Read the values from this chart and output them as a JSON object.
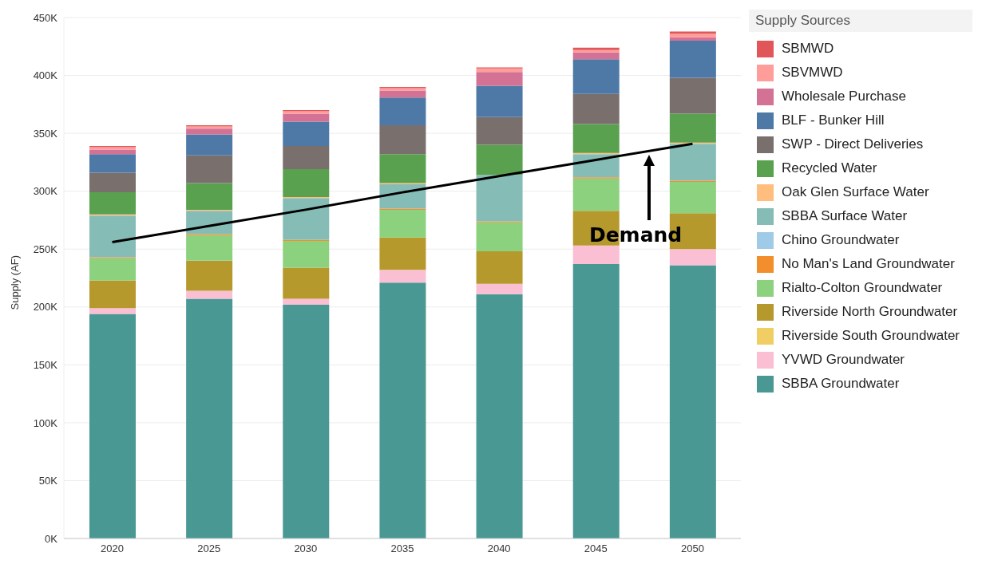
{
  "chart_data": {
    "type": "bar",
    "stacked": true,
    "ylabel": "Supply (AF)",
    "legend_title": "Supply Sources",
    "legend": "right",
    "grid": "y",
    "categories": [
      "2020",
      "2025",
      "2030",
      "2035",
      "2040",
      "2045",
      "2050"
    ],
    "ylim": [
      0,
      450
    ],
    "yticks": [
      {
        "value": 0,
        "label": "0K"
      },
      {
        "value": 50,
        "label": "50K"
      },
      {
        "value": 100,
        "label": "100K"
      },
      {
        "value": 150,
        "label": "150K"
      },
      {
        "value": 200,
        "label": "200K"
      },
      {
        "value": 250,
        "label": "250K"
      },
      {
        "value": 300,
        "label": "300K"
      },
      {
        "value": 350,
        "label": "350K"
      },
      {
        "value": 400,
        "label": "400K"
      },
      {
        "value": 450,
        "label": "450K"
      }
    ],
    "series": [
      {
        "name": "SBBA Groundwater",
        "color": "#499894",
        "values": [
          194,
          207,
          202,
          221,
          211,
          237,
          236
        ]
      },
      {
        "name": "YVWD Groundwater",
        "color": "#fabfd2",
        "values": [
          5,
          7,
          5,
          11,
          9,
          16,
          14
        ]
      },
      {
        "name": "Riverside South Groundwater",
        "color": "#f1ce63",
        "values": [
          0,
          0,
          0,
          0,
          0,
          0,
          0
        ]
      },
      {
        "name": "Riverside North Groundwater",
        "color": "#b6992d",
        "values": [
          24,
          26,
          27,
          28,
          28,
          30,
          31
        ]
      },
      {
        "name": "Rialto-Colton Groundwater",
        "color": "#8cd17d",
        "values": [
          19,
          22,
          23,
          24,
          25,
          28,
          27
        ]
      },
      {
        "name": "No Man's Land Groundwater",
        "color": "#f28e2b",
        "values": [
          1,
          1,
          1,
          1,
          1,
          1,
          1
        ]
      },
      {
        "name": "Chino Groundwater",
        "color": "#a0cbe8",
        "values": [
          0,
          0,
          0,
          0,
          0,
          0,
          0
        ]
      },
      {
        "name": "SBBA Surface Water",
        "color": "#86bcb6",
        "values": [
          36,
          20,
          36,
          21,
          40,
          20,
          32
        ]
      },
      {
        "name": "Oak Glen Surface Water",
        "color": "#ffbe7d",
        "values": [
          1,
          1,
          1,
          1,
          null,
          1,
          1
        ]
      },
      {
        "name": "Recycled Water",
        "color": "#59a14f",
        "values": [
          19,
          23,
          24,
          25,
          26,
          25,
          25
        ]
      },
      {
        "name": "SWP - Direct Deliveries",
        "color": "#79706e",
        "values": [
          17,
          24,
          20,
          25,
          24,
          26,
          31
        ]
      },
      {
        "name": "BLF - Bunker Hill",
        "color": "#4e79a7",
        "values": [
          16,
          18,
          21,
          24,
          27,
          30,
          32
        ]
      },
      {
        "name": "Wholesale Purchase",
        "color": "#d37295",
        "values": [
          4,
          5,
          7,
          6,
          12,
          6,
          3
        ]
      },
      {
        "name": "SBVMWD",
        "color": "#ff9d9a",
        "values": [
          2,
          2,
          2,
          2,
          3,
          2,
          3
        ]
      },
      {
        "name": "SBMWD",
        "color": "#e15759",
        "values": [
          1,
          1,
          1,
          1,
          1,
          2,
          2
        ]
      },
      {
        "name": "Demand",
        "type": "line",
        "color": "#000000",
        "marker": "none",
        "values": [
          256,
          270,
          284,
          299,
          313,
          327,
          341
        ]
      }
    ]
  }
}
